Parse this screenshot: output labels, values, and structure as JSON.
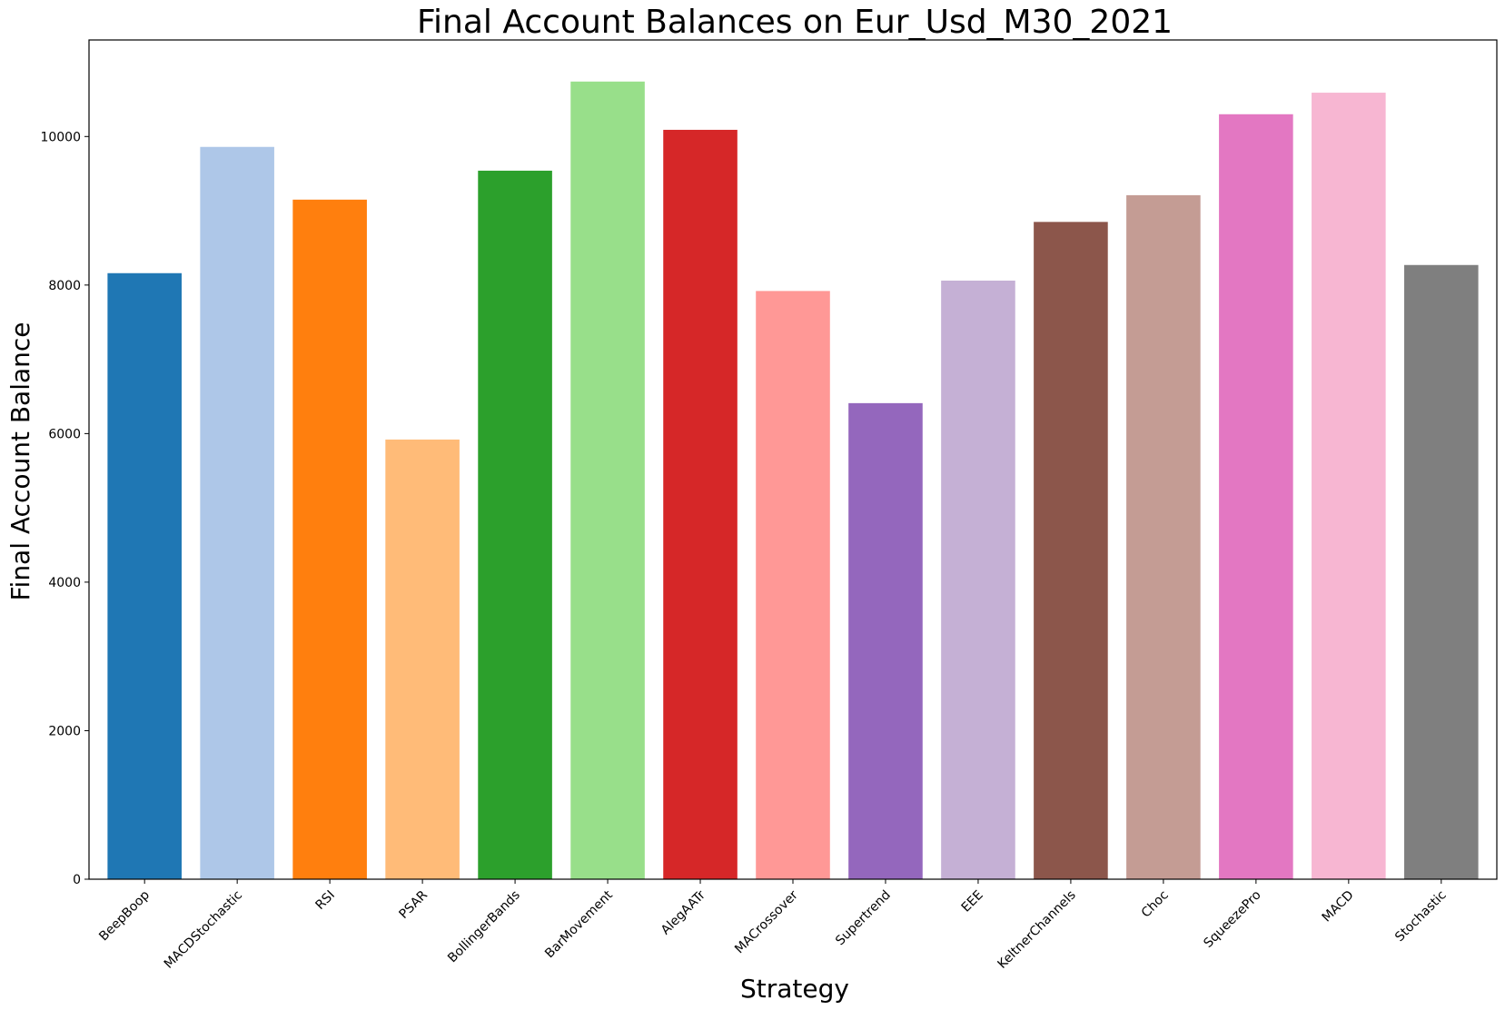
{
  "chart_data": {
    "type": "bar",
    "title": "Final Account Balances on Eur_Usd_M30_2021",
    "xlabel": "Strategy",
    "ylabel": "Final Account Balance",
    "ylim": [
      0,
      11300
    ],
    "yticks": [
      0,
      2000,
      4000,
      6000,
      8000,
      10000
    ],
    "grid": false,
    "legend": "none",
    "categories": [
      "BeepBoop",
      "MACDStochastic",
      "RSI",
      "PSAR",
      "BollingerBands",
      "BarMovement",
      "AlegAATr",
      "MACrossover",
      "Supertrend",
      "EEE",
      "KeltnerChannels",
      "Choc",
      "SqueezePro",
      "MACD",
      "Stochastic"
    ],
    "values": [
      8160,
      9860,
      9150,
      5920,
      9540,
      10740,
      10090,
      7920,
      6410,
      8060,
      8850,
      9210,
      10300,
      10590,
      8270
    ],
    "colors": [
      "#1f77b4",
      "#aec7e8",
      "#ff7f0e",
      "#ffbb78",
      "#2ca02c",
      "#98df8a",
      "#d62728",
      "#ff9896",
      "#9467bd",
      "#c5b0d5",
      "#8c564b",
      "#c49c94",
      "#e377c2",
      "#f7b6d2",
      "#7f7f7f"
    ]
  }
}
